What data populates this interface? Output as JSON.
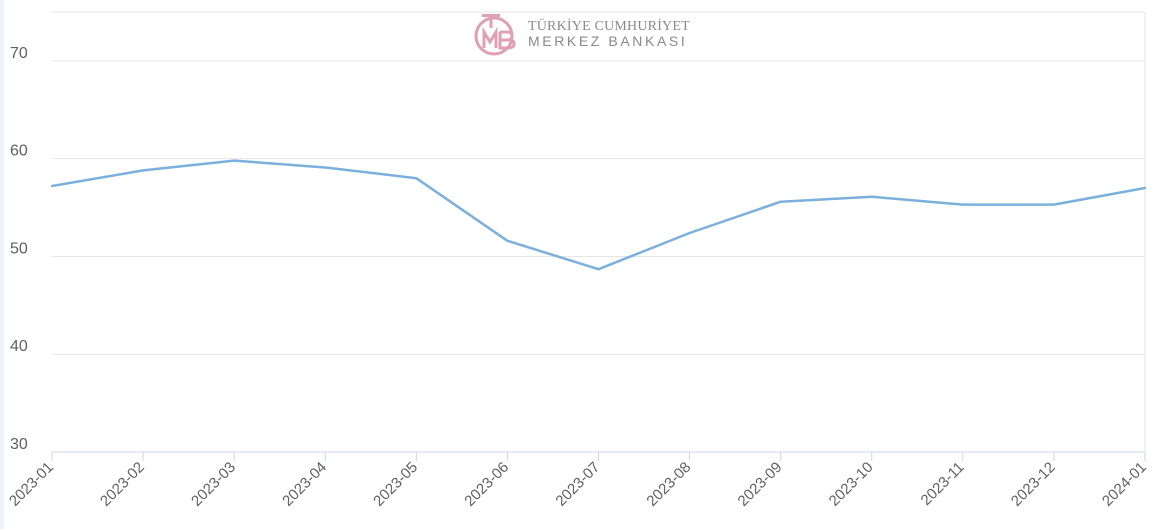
{
  "logo": {
    "line1": "TÜRKİYE CUMHURİYET",
    "line2": "MERKEZ BANKASI",
    "accent_color": "#e0a0b4"
  },
  "chart_data": {
    "type": "line",
    "categories": [
      "2023-01",
      "2023-02",
      "2023-03",
      "2023-04",
      "2023-05",
      "2023-06",
      "2023-07",
      "2023-08",
      "2023-09",
      "2023-10",
      "2023-11",
      "2023-12",
      "2024-01"
    ],
    "series": [
      {
        "values": [
          57.2,
          58.8,
          59.8,
          59.1,
          58.0,
          51.6,
          48.7,
          52.4,
          55.6,
          56.1,
          55.3,
          55.3,
          57.0
        ],
        "color": "#7cb0dc"
      }
    ],
    "y_ticks": [
      "30",
      "40",
      "50",
      "60",
      "70"
    ],
    "ylim": [
      30,
      75
    ],
    "title": "",
    "xlabel": "",
    "ylabel": "",
    "grid": true,
    "legend": "none"
  }
}
